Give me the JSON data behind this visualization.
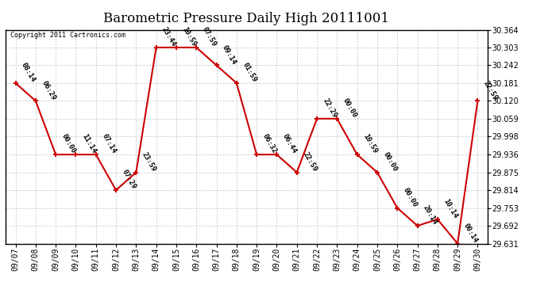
{
  "title": "Barometric Pressure Daily High 20111001",
  "copyright": "Copyright 2011 Cartronics.com",
  "x_labels": [
    "09/07",
    "09/08",
    "09/09",
    "09/10",
    "09/11",
    "09/12",
    "09/13",
    "09/14",
    "09/15",
    "09/16",
    "09/17",
    "09/18",
    "09/19",
    "09/20",
    "09/21",
    "09/22",
    "09/23",
    "09/24",
    "09/25",
    "09/26",
    "09/27",
    "09/28",
    "09/29",
    "09/30"
  ],
  "y_values": [
    30.181,
    30.12,
    29.936,
    29.936,
    29.936,
    29.814,
    29.875,
    30.303,
    30.303,
    30.303,
    30.242,
    30.181,
    29.936,
    29.936,
    29.875,
    30.059,
    30.059,
    29.936,
    29.875,
    29.753,
    29.692,
    29.714,
    29.631,
    30.12
  ],
  "time_labels": [
    "08:14",
    "06:29",
    "00:00",
    "11:14",
    "07:14",
    "07:29",
    "23:59",
    "23:44",
    "10:59",
    "07:59",
    "09:14",
    "01:59",
    "06:32",
    "06:44",
    "22:59",
    "22:29",
    "00:00",
    "10:59",
    "00:00",
    "00:00",
    "20:14",
    "10:14",
    "00:14",
    "22:59"
  ],
  "y_min": 29.631,
  "y_max": 30.364,
  "y_ticks": [
    29.631,
    29.692,
    29.753,
    29.814,
    29.875,
    29.936,
    29.998,
    30.059,
    30.12,
    30.181,
    30.242,
    30.303,
    30.364
  ],
  "line_color": "#cc0000",
  "marker_color": "#cc0000",
  "bg_color": "#ffffff",
  "grid_color": "#c8c8c8",
  "title_fontsize": 12,
  "tick_fontsize": 7,
  "annotation_fontsize": 6.5
}
